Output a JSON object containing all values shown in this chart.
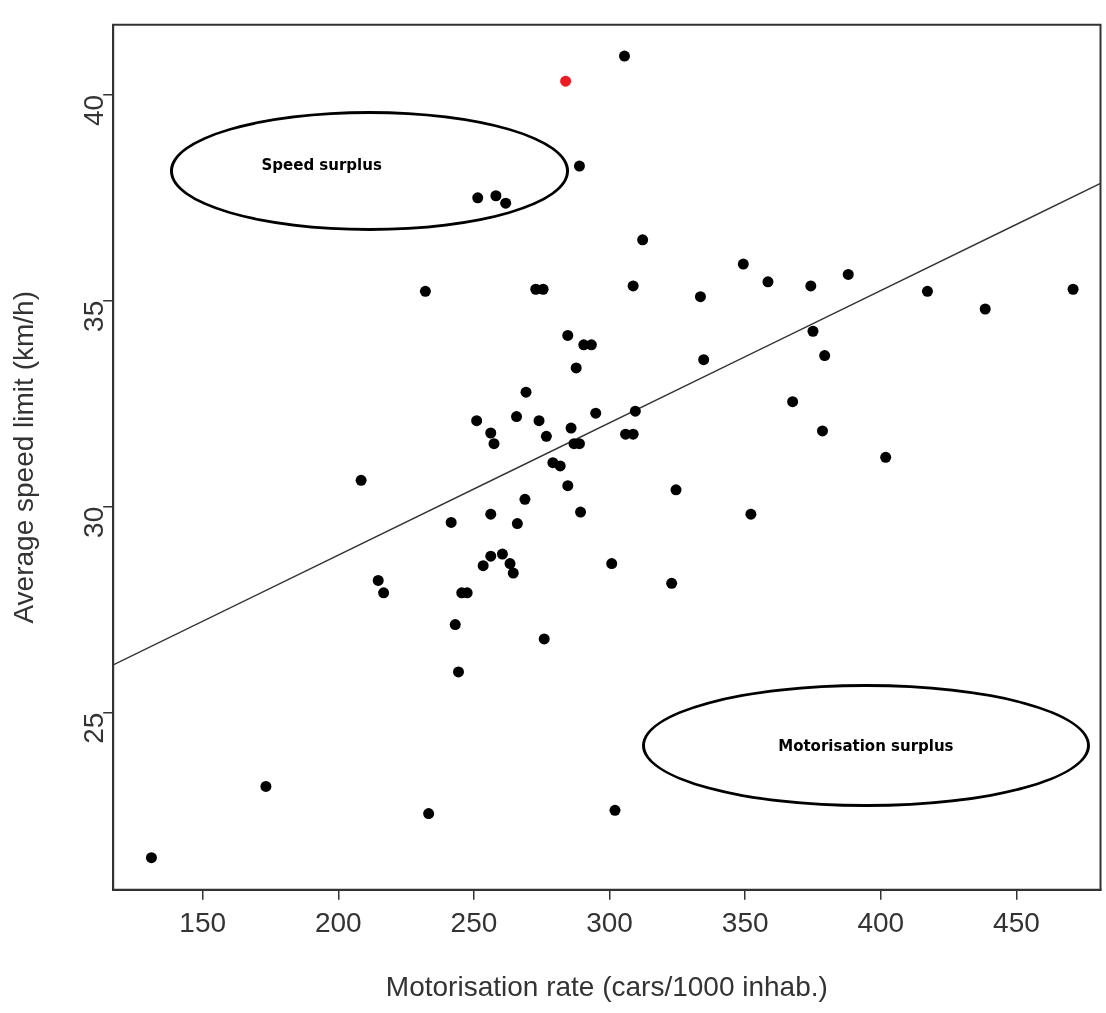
{
  "chart_data": {
    "type": "scatter",
    "xlabel": "Motorisation rate (cars/1000 inhab.)",
    "ylabel": "Average speed limit (km/h)",
    "xlim": [
      117,
      481
    ],
    "ylim": [
      20.7,
      41.7
    ],
    "xticks": [
      150,
      200,
      250,
      300,
      350,
      400,
      450
    ],
    "yticks": [
      25,
      30,
      35,
      40
    ],
    "grid": false,
    "legend": false,
    "marker": "circle",
    "annotations": [
      "Speed surplus",
      "Motorisation surplus"
    ],
    "series": [
      {
        "color": "#000000",
        "x": [
          305.5,
          288.9,
          251.4,
          258.1,
          261.7,
          232.1,
          272.8,
          275.5,
          312.2,
          308.7,
          284.6,
          290.5,
          293.3,
          287.7,
          269.2,
          251.0,
          265.7,
          274.0,
          276.7,
          285.8,
          294.9,
          309.5,
          305.9,
          308.7,
          256.2,
          257.4,
          286.9,
          288.9,
          279.1,
          281.8,
          208.4,
          284.6,
          268.8,
          256.2,
          289.3,
          266.0,
          241.6,
          253.4,
          256.2,
          260.5,
          263.3,
          264.5,
          300.8,
          322.9,
          214.7,
          216.7,
          245.5,
          247.5,
          243.1,
          275.9,
          244.3,
          173.3,
          233.3,
          302.0,
          131.1,
          349.3,
          333.5,
          358.4,
          374.2,
          388.0,
          417.2,
          438.5,
          470.9,
          375.0,
          379.3,
          334.7,
          367.5,
          378.5,
          401.8,
          324.5,
          352.1
        ],
        "values": [
          40.94,
          38.27,
          37.5,
          37.55,
          37.37,
          35.23,
          35.28,
          35.28,
          36.48,
          35.36,
          34.16,
          33.93,
          33.93,
          33.37,
          32.78,
          32.09,
          32.19,
          32.09,
          31.71,
          31.91,
          32.27,
          32.32,
          31.76,
          31.76,
          31.79,
          31.53,
          31.53,
          31.53,
          31.07,
          30.99,
          30.64,
          30.51,
          30.18,
          29.82,
          29.87,
          29.59,
          29.62,
          28.57,
          28.8,
          28.85,
          28.62,
          28.39,
          28.62,
          28.14,
          28.21,
          27.91,
          27.91,
          27.91,
          27.14,
          26.79,
          25.99,
          23.21,
          22.55,
          22.63,
          21.48,
          35.89,
          35.1,
          35.46,
          35.36,
          35.64,
          35.23,
          34.8,
          35.28,
          34.26,
          33.67,
          33.57,
          32.55,
          31.84,
          31.2,
          30.41,
          29.82
        ]
      },
      {
        "color": "#ed1c24",
        "x": [
          283.8
        ],
        "values": [
          40.33
        ]
      },
      {
        "type": "line",
        "color": "#333333",
        "marker": "none",
        "x": [
          117,
          481
        ],
        "values": [
          26.16,
          37.85
        ]
      }
    ]
  }
}
